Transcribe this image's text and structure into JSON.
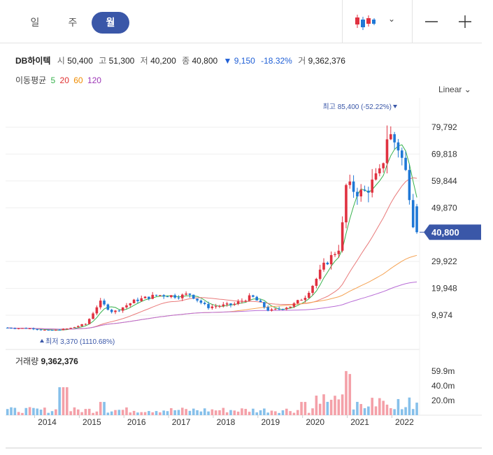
{
  "toolbar": {
    "tabs": [
      "일",
      "주",
      "월"
    ],
    "active_tab": "월",
    "chart_type_icon": "candlestick-icon",
    "zoom_out_icon": "minus-icon",
    "zoom_in_icon": "plus-icon"
  },
  "info": {
    "name": "DB하이텍",
    "open_label": "시",
    "open": "50,400",
    "high_label": "고",
    "high": "51,300",
    "low_label": "저",
    "low": "40,200",
    "close_label": "종",
    "close": "40,800",
    "change": "▼ 9,150",
    "change_pct": "-18.32%",
    "volume_label": "거",
    "volume": "9,362,376"
  },
  "ma": {
    "label": "이동평균",
    "periods": [
      {
        "label": "5",
        "color": "#37b24d"
      },
      {
        "label": "20",
        "color": "#e03131"
      },
      {
        "label": "60",
        "color": "#f08c00"
      },
      {
        "label": "120",
        "color": "#9c36b5"
      }
    ]
  },
  "scale_label": "Linear",
  "colors": {
    "up": "#e03140",
    "down": "#1f78d6",
    "accent": "#3a57a8",
    "vol_up": "#f4a0a8",
    "vol_down": "#86c0ea"
  },
  "chart_data": {
    "type": "candlestick",
    "x_labels": [
      "2014",
      "2015",
      "2016",
      "2017",
      "2018",
      "2019",
      "2020",
      "2021",
      "2022"
    ],
    "y_ticks": [
      "79,792",
      "69,818",
      "59,844",
      "49,870",
      "29,922",
      "19,948",
      "9,974"
    ],
    "y_tick_values": [
      79792,
      69818,
      59844,
      49870,
      29922,
      19948,
      9974
    ],
    "ylim": [
      1000,
      87000
    ],
    "current_price_label": "40,800",
    "current_price": 40800,
    "max_label": "최고 85,400 (-52.22%)",
    "min_label": "최저 3,370 (1110.68%)",
    "volume_title": "거래량",
    "volume_value": "9,362,376",
    "volume_ticks": [
      "59.9m",
      "40.0m",
      "20.0m"
    ],
    "volume_tick_values": [
      59.9,
      40.0,
      20.0
    ],
    "volume_ylim": [
      0,
      70
    ],
    "anchors": [
      {
        "y": 2013.0,
        "p": 5500
      },
      {
        "y": 2014.0,
        "p": 5000
      },
      {
        "y": 2014.4,
        "p": 4200
      },
      {
        "y": 2014.8,
        "p": 5000
      },
      {
        "y": 2015.2,
        "p": 6800
      },
      {
        "y": 2015.5,
        "p": 15000
      },
      {
        "y": 2015.8,
        "p": 11000
      },
      {
        "y": 2016.3,
        "p": 15500
      },
      {
        "y": 2016.8,
        "p": 17500
      },
      {
        "y": 2017.3,
        "p": 17000
      },
      {
        "y": 2017.5,
        "p": 18000
      },
      {
        "y": 2017.9,
        "p": 13000
      },
      {
        "y": 2018.5,
        "p": 14000
      },
      {
        "y": 2018.9,
        "p": 17000
      },
      {
        "y": 2019.3,
        "p": 11500
      },
      {
        "y": 2019.8,
        "p": 13500
      },
      {
        "y": 2020.1,
        "p": 17000
      },
      {
        "y": 2020.3,
        "p": 22000
      },
      {
        "y": 2020.5,
        "p": 28000
      },
      {
        "y": 2020.9,
        "p": 36000
      },
      {
        "y": 2021.0,
        "p": 58000
      },
      {
        "y": 2021.4,
        "p": 55000
      },
      {
        "y": 2021.8,
        "p": 63000
      },
      {
        "y": 2021.95,
        "p": 78000
      },
      {
        "y": 2022.2,
        "p": 72000
      },
      {
        "y": 2022.4,
        "p": 60000
      },
      {
        "y": 2022.47,
        "p": 49950
      },
      {
        "y": 2022.55,
        "p": 40800
      }
    ]
  }
}
